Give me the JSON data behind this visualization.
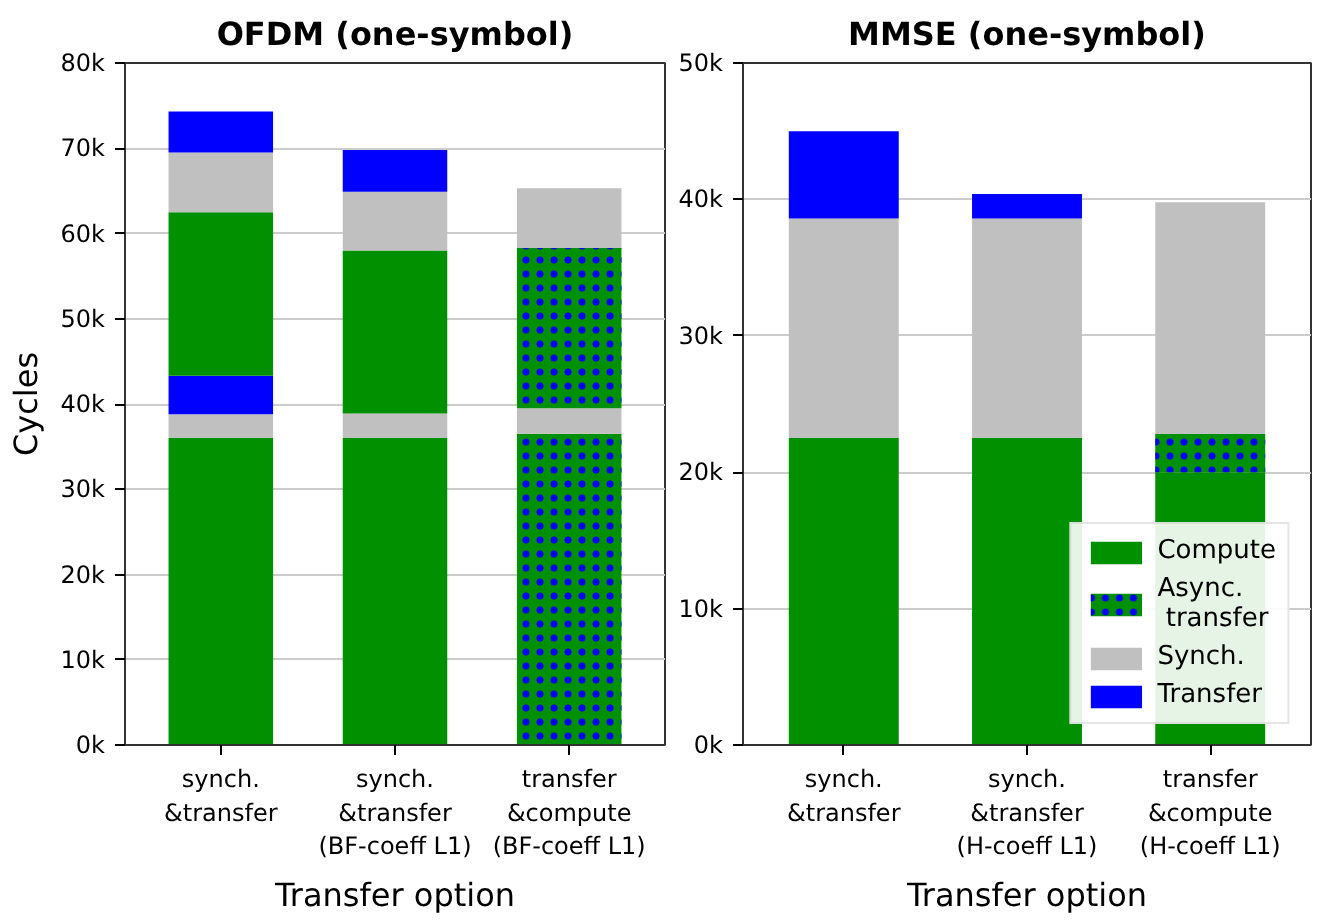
{
  "chart_data": [
    {
      "type": "bar",
      "title": "OFDM (one-symbol)",
      "xlabel": "Transfer option",
      "ylabel": "Cycles",
      "stacked": true,
      "grid": "y",
      "legend": false,
      "categories": [
        "synch.\n&transfer",
        "synch.\n&transfer\n(BF-coeff L1)",
        "transfer\n&compute\n(BF-coeff L1)"
      ],
      "ylim": [
        0,
        80000
      ],
      "yticks": [
        {
          "value": 0,
          "label": "0k"
        },
        {
          "value": 10000,
          "label": "10k"
        },
        {
          "value": 20000,
          "label": "20k"
        },
        {
          "value": 30000,
          "label": "30k"
        },
        {
          "value": 40000,
          "label": "40k"
        },
        {
          "value": 50000,
          "label": "50k"
        },
        {
          "value": 60000,
          "label": "60k"
        },
        {
          "value": 70000,
          "label": "70k"
        },
        {
          "value": 80000,
          "label": "80k"
        }
      ],
      "series": [
        {
          "color": "#0000ff",
          "colors": [
            "#ffffff",
            "#ffffff",
            "#009000"
          ],
          "line_style": "dotted",
          "values": [
            null,
            null,
            36500
          ]
        },
        {
          "color": "#009000",
          "values": [
            36000,
            36000,
            null
          ]
        },
        {
          "color": "#c0c0c0",
          "values": [
            2800,
            2900,
            3000
          ]
        },
        {
          "color": "#0000ff",
          "values": [
            4500,
            null,
            null
          ]
        },
        {
          "color": "#0000ff",
          "colors": [
            "#ffffff",
            "#ffffff",
            "#009000"
          ],
          "line_style": "dotted",
          "values": [
            null,
            null,
            18800
          ]
        },
        {
          "color": "#009000",
          "values": [
            19200,
            19100,
            null
          ]
        },
        {
          "color": "#c0c0c0",
          "values": [
            7000,
            6900,
            7000
          ]
        },
        {
          "color": "#0000ff",
          "values": [
            4800,
            4900,
            null
          ]
        }
      ]
    },
    {
      "type": "bar",
      "title": "MMSE (one-symbol)",
      "xlabel": "Transfer option",
      "stacked": true,
      "grid": "y",
      "legend": "bottom right",
      "categories": [
        "synch.\n&transfer",
        "synch.\n&transfer\n(H-coeff L1)",
        "transfer\n&compute\n(H-coeff L1)"
      ],
      "ylim": [
        0,
        50000
      ],
      "yticks": [
        {
          "value": 0,
          "label": "0k"
        },
        {
          "value": 10000,
          "label": "10k"
        },
        {
          "value": 20000,
          "label": "20k"
        },
        {
          "value": 30000,
          "label": "30k"
        },
        {
          "value": 40000,
          "label": "40k"
        },
        {
          "value": 50000,
          "label": "50k"
        }
      ],
      "series": [
        {
          "name": "Compute",
          "color": "#009000",
          "values": [
            22500,
            22500,
            20000
          ]
        },
        {
          "name": "Async.\n transfer",
          "color": "#0000ff",
          "colors": [
            "#ffffff",
            "#ffffff",
            "#009000"
          ],
          "line_style": "dotted",
          "values": [
            null,
            null,
            2800
          ]
        },
        {
          "name": "Synch.",
          "color": "#c0c0c0",
          "values": [
            16100,
            16100,
            17000
          ]
        },
        {
          "name": "Transfer",
          "color": "#0000ff",
          "values": [
            6400,
            1800,
            null
          ]
        }
      ]
    }
  ]
}
